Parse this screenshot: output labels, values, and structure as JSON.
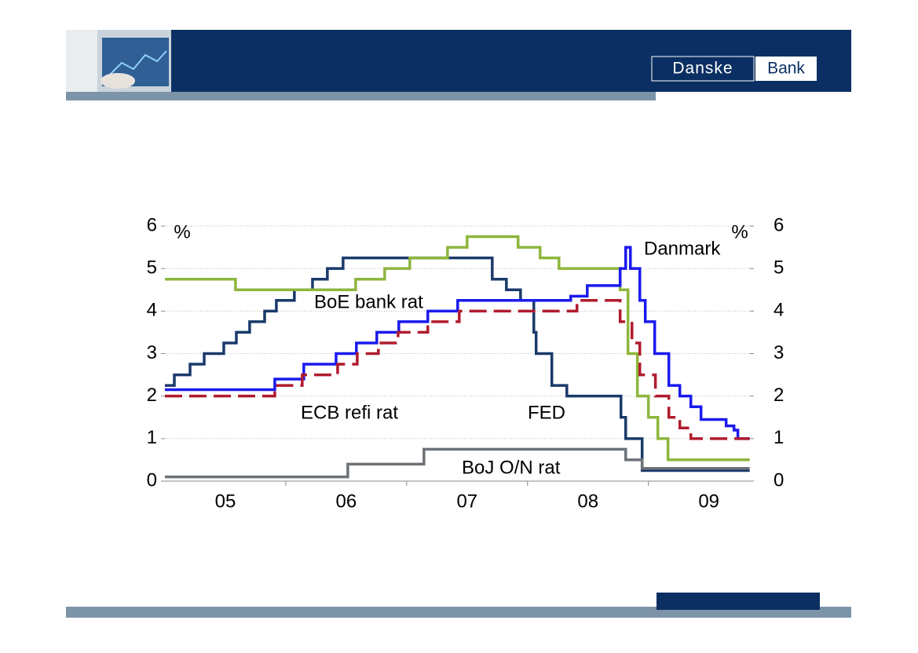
{
  "header": {
    "logo": [
      "Danske",
      "Bank"
    ]
  },
  "chart_data": {
    "type": "line",
    "step": "post",
    "xlim": [
      2005,
      2009.84
    ],
    "xticks": [
      {
        "value": 2005.5,
        "label": "05"
      },
      {
        "value": 2006.5,
        "label": "06"
      },
      {
        "value": 2007.5,
        "label": "07"
      },
      {
        "value": 2008.5,
        "label": "08"
      },
      {
        "value": 2009.5,
        "label": "09"
      }
    ],
    "ylim": [
      0,
      6
    ],
    "yticks": [
      0,
      1,
      2,
      3,
      4,
      5,
      6
    ],
    "y2lim": [
      0,
      6
    ],
    "y2ticks": [
      0,
      1,
      2,
      3,
      4,
      5,
      6
    ],
    "y_unit": "%",
    "y2_unit": "%",
    "grid": true,
    "annotations": [
      "BoE bank rat",
      "ECB refi rat",
      "FED",
      "BoJ O/N rat",
      "Danmark"
    ],
    "series": [
      {
        "name": "FED",
        "color": "#1a3a6b",
        "dash": false,
        "x": [
          2005.0,
          2005.078,
          2005.208,
          2005.325,
          2005.487,
          2005.591,
          2005.701,
          2005.825,
          2005.922,
          2006.071,
          2006.221,
          2006.344,
          2006.474,
          2007.708,
          2007.825,
          2007.942,
          2008.052,
          2008.071,
          2008.201,
          2008.325,
          2008.773,
          2008.812,
          2008.948,
          2009.838
        ],
        "values": [
          2.25,
          2.5,
          2.75,
          3.0,
          3.25,
          3.5,
          3.75,
          4.0,
          4.25,
          4.5,
          4.75,
          5.0,
          5.25,
          4.75,
          4.5,
          4.25,
          3.5,
          3.0,
          2.25,
          2.0,
          1.5,
          1.0,
          0.25,
          0.25
        ]
      },
      {
        "name": "BoE bank rat",
        "color": "#8db63c",
        "dash": false,
        "x": [
          2005.0,
          2005.584,
          2006.578,
          2006.818,
          2007.026,
          2007.338,
          2007.5,
          2007.922,
          2008.104,
          2008.26,
          2008.766,
          2008.831,
          2008.909,
          2009.0,
          2009.078,
          2009.162,
          2009.838
        ],
        "values": [
          4.75,
          4.5,
          4.75,
          5.0,
          5.25,
          5.5,
          5.75,
          5.5,
          5.25,
          5.0,
          4.5,
          3.0,
          2.0,
          1.5,
          1.0,
          0.5,
          0.5
        ]
      },
      {
        "name": "Danmark",
        "color": "#1a1aee",
        "dash": false,
        "x": [
          2005.0,
          2005.909,
          2006.149,
          2006.416,
          2006.584,
          2006.753,
          2006.935,
          2007.175,
          2007.422,
          2008.357,
          2008.494,
          2008.766,
          2008.812,
          2008.851,
          2008.929,
          2008.974,
          2009.052,
          2009.169,
          2009.26,
          2009.351,
          2009.435,
          2009.643,
          2009.708,
          2009.74,
          2009.838
        ],
        "values": [
          2.15,
          2.4,
          2.75,
          3.0,
          3.25,
          3.5,
          3.75,
          4.0,
          4.25,
          4.35,
          4.6,
          5.0,
          5.5,
          5.0,
          4.25,
          3.75,
          3.0,
          2.25,
          2.0,
          1.75,
          1.45,
          1.3,
          1.2,
          1.0,
          1.0
        ]
      },
      {
        "name": "ECB refi rat",
        "color": "#b01c2e",
        "dash": true,
        "x": [
          2005.0,
          2005.909,
          2006.136,
          2006.429,
          2006.591,
          2006.766,
          2006.929,
          2007.175,
          2007.435,
          2008.409,
          2008.766,
          2008.864,
          2008.929,
          2009.058,
          2009.169,
          2009.26,
          2009.351,
          2009.838
        ],
        "values": [
          2.0,
          2.25,
          2.5,
          2.75,
          3.0,
          3.25,
          3.5,
          3.75,
          4.0,
          4.25,
          3.75,
          3.25,
          2.5,
          2.0,
          1.5,
          1.25,
          1.0,
          1.0
        ]
      },
      {
        "name": "BoJ O/N rat",
        "color": "#6d7278",
        "dash": false,
        "x": [
          2005.0,
          2006.513,
          2007.143,
          2008.812,
          2008.948,
          2009.838
        ],
        "values": [
          0.1,
          0.4,
          0.75,
          0.5,
          0.3,
          0.3
        ]
      }
    ]
  }
}
